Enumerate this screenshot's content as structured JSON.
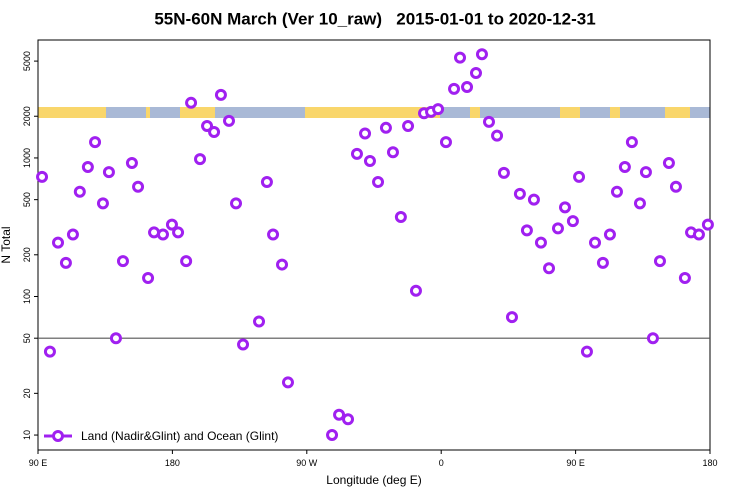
{
  "chart_data": {
    "type": "scatter",
    "title": "55N-60N March (Ver 10_raw)   2015-01-01 to 2020-12-31",
    "xlabel": "Longitude (deg E)",
    "ylabel": "N Total",
    "log_y": true,
    "color": "#a020f0",
    "reference_line": 50,
    "xlim": [
      90,
      540
    ],
    "ylim": [
      7.8,
      7100
    ],
    "xticks": [
      {
        "value": 90,
        "label": "90 E"
      },
      180,
      {
        "value": 270,
        "label": "90 W"
      },
      {
        "value": 360,
        "label": "0"
      },
      {
        "value": 450,
        "label": "90 E"
      },
      {
        "value": 540,
        "label": "180"
      }
    ],
    "yticks": [
      10,
      20,
      50,
      100,
      200,
      500,
      1000,
      2000,
      5000
    ],
    "legend_position": "bottom-left",
    "series": [
      {
        "name": "Land (Nadir&Glint) and Ocean (Glint)",
        "color": "#a020f0",
        "x": [
          92.7,
          98,
          103.4,
          108.7,
          113.4,
          118,
          123.4,
          128.2,
          133.5,
          137.5,
          142.2,
          146.9,
          152.9,
          157,
          163.7,
          167.7,
          173.7,
          179.7,
          183.8,
          189.2,
          192.5,
          198.5,
          203.2,
          207.9,
          212.5,
          217.9,
          222.6,
          227.3,
          238,
          243.3,
          247.4,
          253.4,
          257.4,
          286.9,
          291.6,
          297.6,
          303.6,
          309,
          312.3,
          317.7,
          323,
          327.7,
          333,
          337.8,
          343.1,
          348.5,
          353.2,
          357.9,
          363.2,
          368.6,
          372.6,
          377.3,
          383.3,
          387.3,
          392,
          397.4,
          402,
          407.4,
          412.7,
          417.4,
          422.1,
          426.8,
          432.2,
          438.2,
          442.9,
          448.2,
          452.3,
          457.6,
          463,
          468.3,
          473,
          477.7,
          483,
          487.7,
          493.1,
          497.1,
          501.8,
          506.5,
          512.5,
          517.2,
          523.2,
          527.3,
          532.6,
          538.6
        ],
        "values": [
          730,
          40,
          245,
          175,
          280,
          570,
          860,
          1300,
          470,
          790,
          50,
          180,
          920,
          620,
          136,
          290,
          280,
          330,
          290,
          180,
          2500,
          980,
          1700,
          1540,
          2850,
          1850,
          470,
          45,
          66,
          670,
          280,
          170,
          24,
          10,
          14,
          13,
          1070,
          1500,
          950,
          670,
          1650,
          1100,
          375,
          1700,
          110,
          2100,
          2150,
          2250,
          1300,
          3150,
          5300,
          3250,
          4100,
          5600,
          1820,
          1450,
          780,
          71,
          550,
          300,
          500,
          245,
          160,
          310,
          440,
          350,
          730,
          40,
          245,
          175,
          280,
          570,
          860,
          1300,
          470,
          790,
          50,
          180,
          920,
          620,
          136,
          290,
          280,
          330
        ]
      }
    ]
  }
}
